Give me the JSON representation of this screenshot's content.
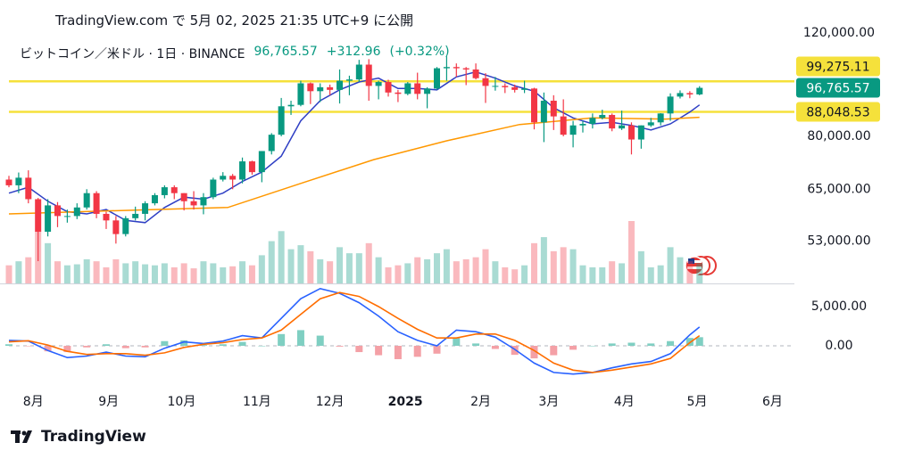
{
  "header": "TradingView.com で 5月 02, 2025 21:35 UTC+9 に公開",
  "footer_logo": "TradingView",
  "chart_data": [
    {
      "type": "candlestick",
      "title": "ビットコイン／米ドル · 1日 · BINANCE",
      "last_label": "96,765.57",
      "change": {
        "value": 312.96,
        "label": "+312.96"
      },
      "change_pct": {
        "value": 0.32,
        "label": "(+0.32%)"
      },
      "up_color": "#089981",
      "down_color": "#f23645",
      "log_scale": true,
      "ylim": [
        44900,
        123000
      ],
      "yticks": [
        {
          "value": 120000,
          "label": "120,000.00"
        },
        {
          "value": 80000,
          "label": "80,000.00"
        },
        {
          "value": 65000,
          "label": "65,000.00"
        },
        {
          "value": 53000,
          "label": "53,000.00"
        }
      ],
      "xlim": [
        -10,
        313
      ],
      "x": [
        -10,
        -6,
        -2,
        2,
        6,
        10,
        14,
        18,
        22,
        26,
        30,
        34,
        38,
        42,
        46,
        50,
        54,
        58,
        62,
        66,
        70,
        74,
        78,
        82,
        86,
        90,
        94,
        98,
        102,
        106,
        110,
        114,
        118,
        122,
        126,
        130,
        134,
        138,
        142,
        146,
        150,
        154,
        158,
        162,
        166,
        170,
        174,
        178,
        182,
        186,
        190,
        194,
        198,
        202,
        206,
        210,
        214,
        218,
        222,
        226,
        230,
        234,
        238,
        242,
        246,
        250,
        254,
        258,
        262,
        266,
        270,
        274
      ],
      "open": [
        67500,
        66000,
        68000,
        62500,
        55000,
        61000,
        58500,
        58500,
        60500,
        64000,
        59000,
        57500,
        54500,
        58000,
        59000,
        61500,
        63500,
        65500,
        64000,
        62000,
        61000,
        63000,
        67500,
        68500,
        67500,
        72500,
        69500,
        75500,
        80500,
        90000,
        90500,
        98500,
        95500,
        97000,
        96000,
        99500,
        100000,
        106000,
        97500,
        99000,
        95000,
        94500,
        98500,
        94500,
        96500,
        104500,
        105000,
        104500,
        104000,
        100500,
        97500,
        97500,
        97000,
        96000,
        96500,
        84500,
        92000,
        86500,
        80500,
        83500,
        84000,
        86000,
        87000,
        82500,
        83500,
        79000,
        83500,
        84500,
        87500,
        93500,
        94800,
        94300
      ],
      "high": [
        68500,
        69400,
        70000,
        62800,
        62500,
        61800,
        60000,
        61500,
        65000,
        64500,
        59500,
        58500,
        58500,
        60700,
        62000,
        64000,
        66000,
        66000,
        64000,
        64500,
        64000,
        68000,
        69500,
        69000,
        73600,
        72700,
        75500,
        81000,
        93000,
        92000,
        99500,
        98800,
        98500,
        98000,
        104000,
        101500,
        108000,
        108300,
        99500,
        99900,
        96000,
        99000,
        102700,
        97000,
        105000,
        109500,
        106500,
        105000,
        106500,
        102500,
        101000,
        98500,
        98000,
        99500,
        96800,
        95000,
        94000,
        92500,
        85000,
        85000,
        87500,
        88800,
        87500,
        88500,
        84500,
        83500,
        86000,
        87600,
        94700,
        95800,
        95500,
        97400
      ],
      "low": [
        65500,
        64000,
        61500,
        49000,
        54000,
        56000,
        57000,
        57800,
        60000,
        58000,
        55600,
        52500,
        54000,
        57500,
        57500,
        61000,
        62700,
        62500,
        59800,
        60000,
        58900,
        62500,
        67000,
        65000,
        66500,
        68800,
        66800,
        74500,
        80000,
        87000,
        90000,
        90800,
        91500,
        94000,
        91000,
        94000,
        99000,
        92000,
        92500,
        93500,
        91500,
        94000,
        92500,
        89300,
        96000,
        99500,
        101000,
        97800,
        100000,
        91200,
        95700,
        94800,
        95000,
        94800,
        82200,
        78200,
        82000,
        80000,
        76600,
        81200,
        82500,
        85500,
        81600,
        82000,
        74500,
        76200,
        83000,
        83500,
        85000,
        92800,
        92900,
        94000
      ],
      "close": [
        66000,
        68000,
        62500,
        55000,
        61000,
        58500,
        58500,
        60500,
        64000,
        59000,
        57500,
        54500,
        58000,
        59000,
        61500,
        63500,
        65500,
        64000,
        62000,
        61000,
        63000,
        67500,
        68500,
        67500,
        72500,
        69500,
        75500,
        80500,
        90000,
        90500,
        98500,
        95500,
        97000,
        96000,
        99500,
        100000,
        106000,
        97500,
        99000,
        95000,
        94500,
        98500,
        94500,
        96500,
        104500,
        105000,
        104500,
        104000,
        100500,
        97500,
        97500,
        97000,
        96000,
        96500,
        84500,
        92000,
        86500,
        80500,
        83500,
        84000,
        86000,
        87000,
        82500,
        83500,
        79000,
        83500,
        84500,
        87500,
        93500,
        94800,
        94300,
        96765.57
      ],
      "volume": [
        90,
        110,
        130,
        260,
        200,
        110,
        90,
        95,
        120,
        110,
        80,
        120,
        100,
        110,
        95,
        90,
        100,
        80,
        100,
        75,
        110,
        100,
        80,
        85,
        110,
        90,
        140,
        210,
        260,
        170,
        190,
        160,
        120,
        110,
        180,
        150,
        150,
        200,
        130,
        80,
        90,
        100,
        130,
        120,
        150,
        170,
        110,
        120,
        130,
        170,
        110,
        80,
        70,
        90,
        200,
        230,
        160,
        180,
        170,
        90,
        80,
        80,
        110,
        100,
        310,
        160,
        80,
        90,
        180,
        130,
        110,
        100
      ],
      "ma": [
        {
          "color": "#2f3fc4",
          "x": [
            -10,
            -2,
            6,
            14,
            22,
            30,
            38,
            46,
            54,
            62,
            70,
            78,
            86,
            94,
            102,
            110,
            118,
            126,
            134,
            142,
            150,
            158,
            166,
            174,
            182,
            190,
            198,
            206,
            214,
            222,
            230,
            238,
            246,
            254,
            262,
            270,
            274
          ],
          "values": [
            64000,
            65500,
            62000,
            59500,
            59000,
            60000,
            57500,
            57000,
            60500,
            63000,
            62500,
            64000,
            67000,
            69500,
            74000,
            85000,
            92000,
            96000,
            99000,
            100500,
            96500,
            96500,
            96000,
            101000,
            103000,
            100500,
            97500,
            95500,
            89500,
            86000,
            84000,
            84500,
            83500,
            82000,
            84000,
            88000,
            90500
          ]
        },
        {
          "color": "#ff9800",
          "x": [
            -10,
            20,
            50,
            80,
            110,
            140,
            170,
            200,
            230,
            260,
            274
          ],
          "values": [
            59000,
            59500,
            60000,
            60500,
            66500,
            73000,
            78600,
            83800,
            86000,
            85600,
            86200
          ]
        }
      ],
      "level_color": "#f5e13b",
      "levels": [
        {
          "value": 99275.11,
          "label": "99,275.11"
        },
        {
          "value": 88048.53,
          "label": "88,048.53"
        }
      ]
    },
    {
      "type": "macd",
      "xlim": [
        -10,
        313
      ],
      "xticks": [
        {
          "value": 0,
          "label": "8月"
        },
        {
          "value": 31,
          "label": "9月"
        },
        {
          "value": 61,
          "label": "10月"
        },
        {
          "value": 92,
          "label": "11月"
        },
        {
          "value": 122,
          "label": "12月"
        },
        {
          "value": 153,
          "label": "2025"
        },
        {
          "value": 184,
          "label": "2月"
        },
        {
          "value": 212,
          "label": "3月"
        },
        {
          "value": 243,
          "label": "4月"
        },
        {
          "value": 273,
          "label": "5月"
        },
        {
          "value": 304,
          "label": "6月"
        }
      ],
      "ylim": [
        -5340,
        7730
      ],
      "yticks": [
        {
          "value": 5000,
          "label": "5,000.00"
        },
        {
          "value": 0,
          "label": "0.00"
        }
      ],
      "zero_line": true,
      "x": [
        -10,
        -2,
        6,
        14,
        22,
        30,
        38,
        46,
        54,
        62,
        70,
        78,
        86,
        94,
        102,
        110,
        118,
        126,
        134,
        142,
        150,
        158,
        166,
        174,
        182,
        190,
        198,
        206,
        214,
        222,
        230,
        238,
        246,
        254,
        262,
        270,
        274
      ],
      "series": [
        {
          "color": "#2962ff",
          "values": [
            700,
            600,
            -600,
            -1500,
            -1300,
            -800,
            -1300,
            -1400,
            -300,
            500,
            300,
            600,
            1300,
            1000,
            3500,
            6000,
            7300,
            6700,
            5500,
            3800,
            1800,
            700,
            0,
            2000,
            1800,
            1100,
            -450,
            -2200,
            -3400,
            -3600,
            -3400,
            -2800,
            -2300,
            -2000,
            -1000,
            1400,
            2400
          ]
        },
        {
          "color": "#ff6d00",
          "values": [
            500,
            650,
            100,
            -700,
            -1100,
            -1000,
            -1000,
            -1200,
            -900,
            -200,
            200,
            400,
            800,
            1000,
            2000,
            4000,
            6000,
            6800,
            6300,
            5000,
            3500,
            2100,
            1000,
            1000,
            1500,
            1500,
            700,
            -600,
            -2200,
            -3100,
            -3400,
            -3100,
            -2700,
            -2300,
            -1600,
            400,
            1300
          ]
        }
      ],
      "histogram": {
        "colors": [
          "#7fcfc2",
          "#f4a0a6"
        ],
        "values": [
          200,
          -50,
          -700,
          -800,
          -200,
          200,
          -300,
          -200,
          600,
          700,
          100,
          200,
          500,
          0,
          1500,
          2000,
          1300,
          -100,
          -800,
          -1200,
          -1700,
          -1400,
          -1000,
          1000,
          300,
          -400,
          -1150,
          -1600,
          -1200,
          -500,
          0,
          300,
          400,
          300,
          600,
          1000,
          1100
        ]
      }
    }
  ]
}
